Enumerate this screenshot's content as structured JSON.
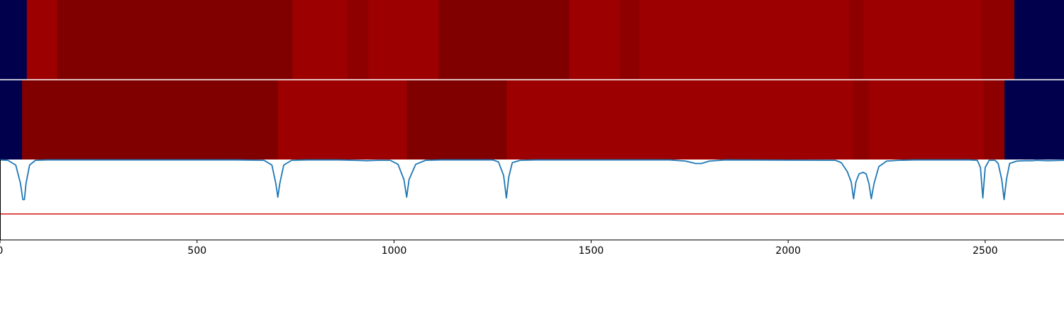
{
  "chart_data": {
    "type": "heatmap",
    "xlim": [
      0,
      2700
    ],
    "xticks": [
      0,
      500,
      1000,
      1500,
      2000,
      2500
    ],
    "colors": {
      "background": "#00004d",
      "dark_red": "#800000",
      "mid_red": "#8e0000",
      "bright_red": "#9c0000",
      "line": "#1f77b4",
      "threshold": "#d62728",
      "separator": "#ffffff"
    },
    "rows": [
      {
        "segments": [
          {
            "start": 0,
            "end": 68,
            "color": "background"
          },
          {
            "start": 68,
            "end": 145,
            "color": "bright_red"
          },
          {
            "start": 145,
            "end": 742,
            "color": "dark_red"
          },
          {
            "start": 742,
            "end": 882,
            "color": "bright_red"
          },
          {
            "start": 882,
            "end": 935,
            "color": "mid_red"
          },
          {
            "start": 935,
            "end": 1113,
            "color": "bright_red"
          },
          {
            "start": 1113,
            "end": 1444,
            "color": "dark_red"
          },
          {
            "start": 1444,
            "end": 1573,
            "color": "bright_red"
          },
          {
            "start": 1573,
            "end": 1622,
            "color": "mid_red"
          },
          {
            "start": 1622,
            "end": 2155,
            "color": "bright_red"
          },
          {
            "start": 2155,
            "end": 2192,
            "color": "mid_red"
          },
          {
            "start": 2192,
            "end": 2491,
            "color": "bright_red"
          },
          {
            "start": 2491,
            "end": 2574,
            "color": "mid_red"
          },
          {
            "start": 2574,
            "end": 2700,
            "color": "background"
          }
        ]
      },
      {
        "segments": [
          {
            "start": 0,
            "end": 56,
            "color": "background"
          },
          {
            "start": 56,
            "end": 705,
            "color": "dark_red"
          },
          {
            "start": 705,
            "end": 1032,
            "color": "bright_red"
          },
          {
            "start": 1032,
            "end": 1286,
            "color": "dark_red"
          },
          {
            "start": 1286,
            "end": 2165,
            "color": "bright_red"
          },
          {
            "start": 2165,
            "end": 2205,
            "color": "mid_red"
          },
          {
            "start": 2205,
            "end": 2496,
            "color": "bright_red"
          },
          {
            "start": 2496,
            "end": 2549,
            "color": "mid_red"
          },
          {
            "start": 2549,
            "end": 2700,
            "color": "background"
          }
        ]
      }
    ],
    "line": {
      "ylim": [
        0,
        1
      ],
      "points": [
        [
          0,
          0.995
        ],
        [
          20,
          0.99
        ],
        [
          40,
          0.93
        ],
        [
          52,
          0.7
        ],
        [
          58,
          0.5
        ],
        [
          62,
          0.5
        ],
        [
          66,
          0.7
        ],
        [
          75,
          0.93
        ],
        [
          90,
          0.99
        ],
        [
          120,
          0.995
        ],
        [
          300,
          0.995
        ],
        [
          600,
          0.995
        ],
        [
          670,
          0.99
        ],
        [
          690,
          0.93
        ],
        [
          700,
          0.7
        ],
        [
          705,
          0.53
        ],
        [
          710,
          0.7
        ],
        [
          720,
          0.93
        ],
        [
          740,
          0.99
        ],
        [
          780,
          0.995
        ],
        [
          860,
          0.995
        ],
        [
          900,
          0.99
        ],
        [
          930,
          0.985
        ],
        [
          960,
          0.99
        ],
        [
          990,
          0.99
        ],
        [
          1010,
          0.94
        ],
        [
          1025,
          0.75
        ],
        [
          1032,
          0.53
        ],
        [
          1038,
          0.75
        ],
        [
          1055,
          0.94
        ],
        [
          1080,
          0.99
        ],
        [
          1120,
          0.995
        ],
        [
          1250,
          0.995
        ],
        [
          1265,
          0.97
        ],
        [
          1278,
          0.8
        ],
        [
          1285,
          0.52
        ],
        [
          1291,
          0.78
        ],
        [
          1300,
          0.96
        ],
        [
          1320,
          0.99
        ],
        [
          1360,
          0.995
        ],
        [
          1700,
          0.995
        ],
        [
          1740,
          0.98
        ],
        [
          1765,
          0.95
        ],
        [
          1780,
          0.95
        ],
        [
          1800,
          0.98
        ],
        [
          1840,
          0.995
        ],
        [
          2120,
          0.99
        ],
        [
          2135,
          0.96
        ],
        [
          2150,
          0.85
        ],
        [
          2160,
          0.72
        ],
        [
          2166,
          0.51
        ],
        [
          2172,
          0.72
        ],
        [
          2180,
          0.82
        ],
        [
          2190,
          0.84
        ],
        [
          2198,
          0.82
        ],
        [
          2205,
          0.7
        ],
        [
          2211,
          0.51
        ],
        [
          2218,
          0.7
        ],
        [
          2230,
          0.91
        ],
        [
          2250,
          0.98
        ],
        [
          2280,
          0.99
        ],
        [
          2320,
          0.995
        ],
        [
          2460,
          0.995
        ],
        [
          2480,
          0.99
        ],
        [
          2488,
          0.9
        ],
        [
          2494,
          0.52
        ],
        [
          2500,
          0.9
        ],
        [
          2510,
          0.99
        ],
        [
          2525,
          0.99
        ],
        [
          2533,
          0.95
        ],
        [
          2542,
          0.75
        ],
        [
          2548,
          0.5
        ],
        [
          2554,
          0.75
        ],
        [
          2562,
          0.95
        ],
        [
          2580,
          0.98
        ],
        [
          2600,
          0.985
        ],
        [
          2620,
          0.985
        ],
        [
          2630,
          0.99
        ],
        [
          2660,
          0.985
        ],
        [
          2700,
          0.99
        ]
      ]
    },
    "threshold": 0.32,
    "grid": false
  }
}
